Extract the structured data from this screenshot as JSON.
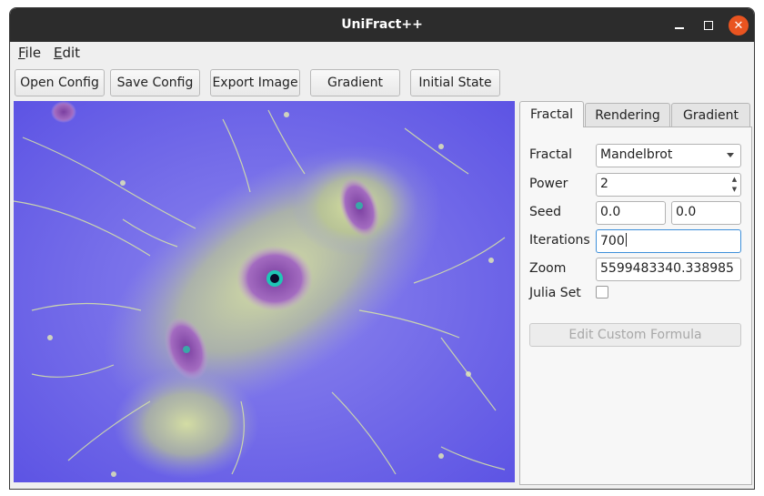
{
  "window": {
    "title": "UniFract++"
  },
  "menu": {
    "file": {
      "accel": "F",
      "rest": "ile"
    },
    "edit": {
      "accel": "E",
      "rest": "dit"
    }
  },
  "toolbar": {
    "open_config": "Open Config",
    "save_config": "Save Config",
    "export_image": "Export Image",
    "gradient": "Gradient",
    "initial_state": "Initial State"
  },
  "tabs": [
    "Fractal",
    "Rendering",
    "Gradient"
  ],
  "form": {
    "fractal_label": "Fractal",
    "fractal_value": "Mandelbrot",
    "power_label": "Power",
    "power_value": "2",
    "seed_label": "Seed",
    "seed_re": "0.0",
    "seed_im": "0.0",
    "iterations_label": "Iterations",
    "iterations_value": "700",
    "zoom_label": "Zoom",
    "zoom_value": "5599483340.338985",
    "julia_label": "Julia Set",
    "julia_checked": false,
    "edit_formula": "Edit Custom Formula"
  },
  "colors": {
    "fractal_background": "#6b62e8",
    "fractal_glow": "#c9d98a",
    "fractal_purple": "#9b5fb8",
    "accent_close": "#e95420"
  }
}
